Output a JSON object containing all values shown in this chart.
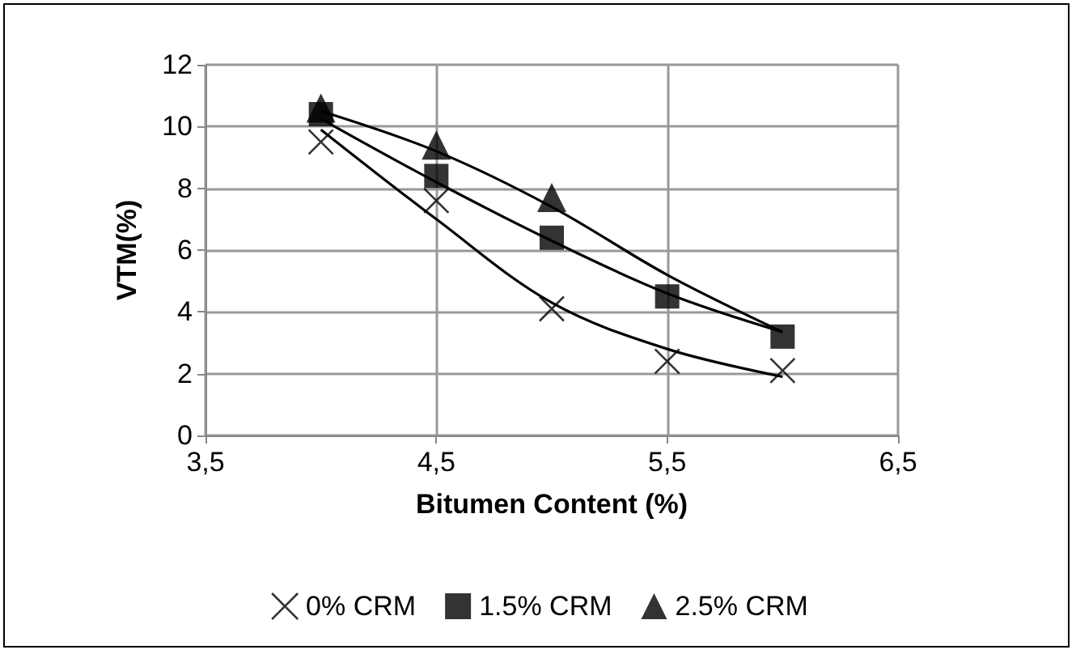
{
  "chart_data": {
    "type": "scatter",
    "xlabel": "Bitumen Content (%)",
    "ylabel": "VTM(%)",
    "xlim": [
      3.5,
      6.5
    ],
    "xticks": [
      {
        "value": 3.5,
        "label": "3,5"
      },
      {
        "value": 4.5,
        "label": "4,5"
      },
      {
        "value": 5.5,
        "label": "5,5"
      },
      {
        "value": 6.5,
        "label": "6,5"
      }
    ],
    "ylim": [
      0,
      12
    ],
    "yticks": [
      0,
      2,
      4,
      6,
      8,
      10,
      12
    ],
    "grid": true,
    "legend": "bottom",
    "x": [
      4,
      4.5,
      5,
      5.5,
      6
    ],
    "series": [
      {
        "type": "line",
        "color": "#000000",
        "marker": "none",
        "values": [
          9.9,
          7.0,
          4.3,
          2.8,
          1.9
        ]
      },
      {
        "type": "line",
        "color": "#000000",
        "marker": "none",
        "values": [
          10.25,
          8.2,
          6.3,
          4.6,
          3.35
        ]
      },
      {
        "type": "line",
        "color": "#000000",
        "marker": "none",
        "values": [
          10.5,
          9.2,
          7.4,
          5.2,
          3.35
        ]
      },
      {
        "name": "0% CRM",
        "color": "#000000",
        "marker": "cross",
        "values": [
          9.5,
          7.6,
          4.1,
          2.4,
          2.1
        ]
      },
      {
        "name": "1.5% CRM",
        "color": "#000000",
        "marker": "square",
        "values": [
          10.4,
          8.4,
          6.4,
          4.5,
          3.2
        ]
      },
      {
        "name": "2.5% CRM",
        "color": "#000000",
        "marker": "triangle",
        "values": [
          10.6,
          9.4,
          7.7,
          null,
          null
        ]
      }
    ]
  }
}
